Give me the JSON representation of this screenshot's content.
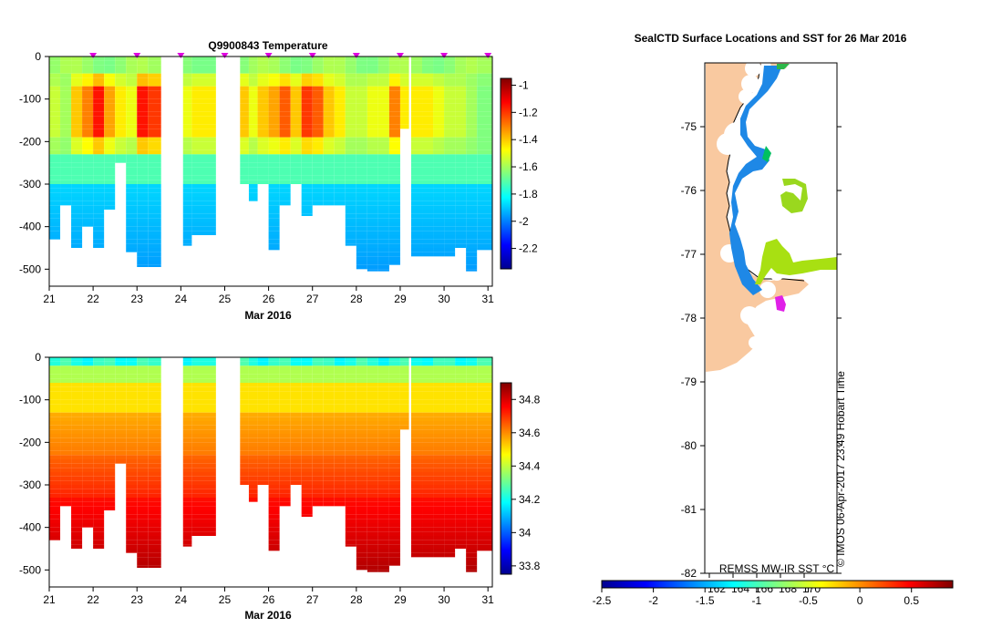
{
  "chart_data": [
    {
      "type": "heatmap",
      "title": "Q9900843  Temperature",
      "xlabel": "Mar 2016",
      "ylabel": "",
      "x_ticks": [
        "21",
        "22",
        "23",
        "24",
        "25",
        "26",
        "27",
        "28",
        "29",
        "30",
        "31"
      ],
      "y_ticks": [
        "0",
        "-100",
        "-200",
        "-300",
        "-400",
        "-500"
      ],
      "xlim": [
        21,
        31.1
      ],
      "ylim": [
        -540,
        0
      ],
      "colorbar": {
        "min": -2.35,
        "max": -0.95,
        "ticks": [
          "-1",
          "-1.2",
          "-1.4",
          "-1.6",
          "-1.8",
          "-2",
          "-2.2"
        ],
        "tick_values": [
          -1,
          -1.2,
          -1.4,
          -1.6,
          -1.8,
          -2,
          -2.2
        ]
      },
      "surface_markers": [
        22,
        23,
        24,
        25,
        26,
        27,
        28,
        29,
        30,
        31
      ],
      "profiles_x_start": [
        21.0,
        21.25,
        21.5,
        21.75,
        22.0,
        22.25,
        22.5,
        22.75,
        23.0,
        23.25,
        24.05,
        24.25,
        25.35,
        25.55,
        25.75,
        26.0,
        26.25,
        26.5,
        26.75,
        27.0,
        27.25,
        27.5,
        27.75,
        28.0,
        28.25,
        28.5,
        28.75,
        29.0,
        29.25,
        29.5,
        29.75,
        30.0,
        30.25,
        30.5,
        30.75
      ],
      "profiles_x_end": [
        21.25,
        21.5,
        21.75,
        22.0,
        22.25,
        22.5,
        22.75,
        23.0,
        23.25,
        23.55,
        24.25,
        24.8,
        25.55,
        25.75,
        26.0,
        26.25,
        26.5,
        26.75,
        27.0,
        27.25,
        27.5,
        27.75,
        28.0,
        28.25,
        28.5,
        28.75,
        29.0,
        29.2,
        29.5,
        29.75,
        30.0,
        30.25,
        30.5,
        30.75,
        31.1
      ],
      "profiles_max_depth": [
        430,
        350,
        450,
        400,
        450,
        360,
        250,
        460,
        495,
        495,
        445,
        420,
        300,
        340,
        300,
        455,
        350,
        300,
        375,
        350,
        350,
        350,
        445,
        500,
        505,
        505,
        490,
        170,
        470,
        470,
        470,
        470,
        450,
        505,
        455
      ],
      "core_temperature": [
        -1.55,
        -1.6,
        -1.4,
        -1.3,
        -1.15,
        -1.35,
        -1.45,
        -1.5,
        -1.15,
        -1.2,
        -1.5,
        -1.45,
        -1.4,
        -1.5,
        -1.4,
        -1.35,
        -1.25,
        -1.4,
        -1.2,
        -1.25,
        -1.4,
        -1.45,
        -1.55,
        -1.55,
        -1.5,
        -1.5,
        -1.3,
        -1.45,
        -1.45,
        -1.45,
        -1.5,
        -1.55,
        -1.55,
        -1.6,
        -1.65
      ],
      "series_note": "Vertical temperature profiles (degC) vs depth (m)"
    },
    {
      "type": "heatmap",
      "title": "",
      "xlabel": "Mar 2016",
      "ylabel": "",
      "x_ticks": [
        "21",
        "22",
        "23",
        "24",
        "25",
        "26",
        "27",
        "28",
        "29",
        "30",
        "31"
      ],
      "y_ticks": [
        "0",
        "-100",
        "-200",
        "-300",
        "-400",
        "-500"
      ],
      "xlim": [
        21,
        31.1
      ],
      "ylim": [
        -540,
        0
      ],
      "colorbar": {
        "min": 33.75,
        "max": 34.9,
        "ticks": [
          "34.8",
          "34.6",
          "34.4",
          "34.2",
          "34",
          "33.8"
        ],
        "tick_values": [
          34.8,
          34.6,
          34.4,
          34.2,
          34.0,
          33.8
        ]
      },
      "series_note": "Vertical salinity profiles vs depth (m); same profile layout as temperature panel",
      "surface_salinity": 34.2,
      "mid_salinity": 34.5,
      "deep_salinity": 34.78
    },
    {
      "type": "map",
      "title": "SealCTD Surface Locations and SST for 26 Mar 2016",
      "lat_ticks": [
        "-75",
        "-76",
        "-77",
        "-78",
        "-79",
        "-80",
        "-81",
        "-82"
      ],
      "lat_values": [
        -75,
        -76,
        -77,
        -78,
        -79,
        -80,
        -81,
        -82
      ],
      "lon_ticks": [
        "162",
        "164",
        "166",
        "168",
        "170"
      ],
      "sst_colorbar": {
        "min": -2.5,
        "max": 0.9,
        "ticks": [
          "-2.5",
          "-2",
          "-1.5",
          "-1",
          "-0.5",
          "0",
          "0.5"
        ],
        "tick_values": [
          -2.5,
          -2,
          -1.5,
          -1,
          -0.5,
          0,
          0.5
        ]
      },
      "source_label": "REMSS MW-IR SST °C",
      "credit": "© IMOS 06-Apr-2017 23:49 Hobart Time"
    }
  ]
}
